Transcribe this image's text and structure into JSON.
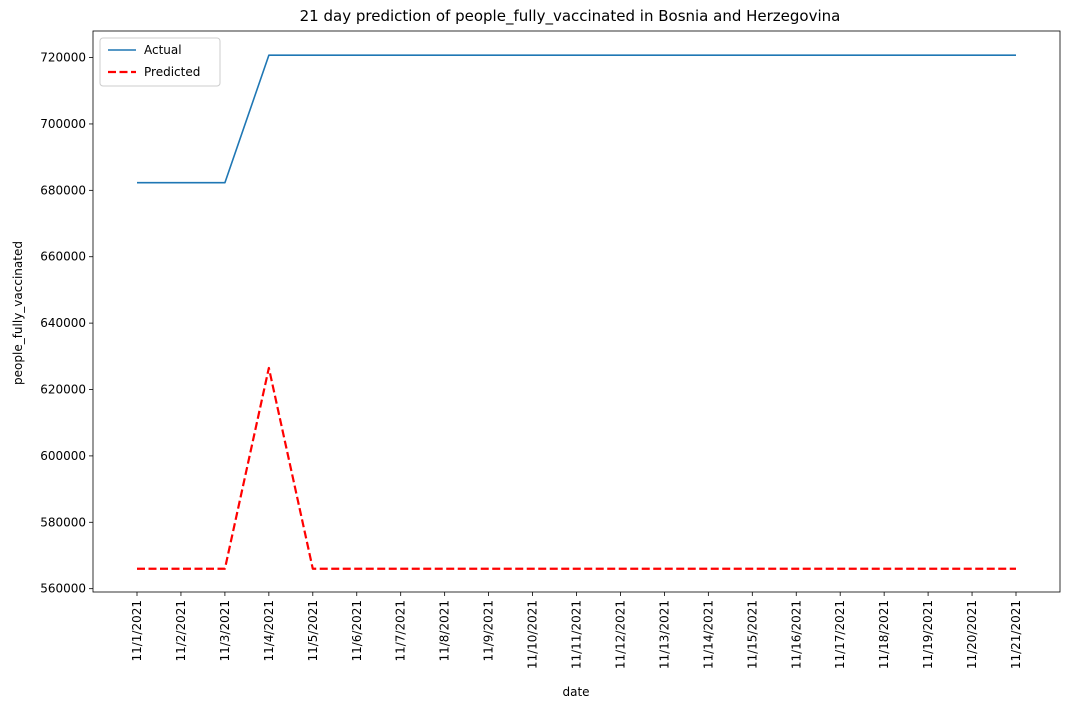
{
  "chart_data": {
    "type": "line",
    "title": "21 day prediction of people_fully_vaccinated in Bosnia and Herzegovina",
    "xlabel": "date",
    "ylabel": "people_fully_vaccinated",
    "categories": [
      "11/1/2021",
      "11/2/2021",
      "11/3/2021",
      "11/4/2021",
      "11/5/2021",
      "11/6/2021",
      "11/7/2021",
      "11/8/2021",
      "11/9/2021",
      "11/10/2021",
      "11/11/2021",
      "11/12/2021",
      "11/13/2021",
      "11/14/2021",
      "11/15/2021",
      "11/16/2021",
      "11/17/2021",
      "11/18/2021",
      "11/19/2021",
      "11/20/2021",
      "11/21/2021"
    ],
    "ylim": [
      559000,
      728000
    ],
    "yticks": [
      560000,
      580000,
      600000,
      620000,
      640000,
      660000,
      680000,
      700000,
      720000
    ],
    "grid": false,
    "legend_position": "top-left",
    "series": [
      {
        "name": "Actual",
        "color": "#1f77b4",
        "style": "solid",
        "values": [
          682300,
          682300,
          682300,
          720700,
          720700,
          720700,
          720700,
          720700,
          720700,
          720700,
          720700,
          720700,
          720700,
          720700,
          720700,
          720700,
          720700,
          720700,
          720700,
          720700,
          720700
        ]
      },
      {
        "name": "Predicted",
        "color": "#ff0000",
        "style": "dashed",
        "values": [
          566000,
          566000,
          566000,
          626500,
          566000,
          566000,
          566000,
          566000,
          566000,
          566000,
          566000,
          566000,
          566000,
          566000,
          566000,
          566000,
          566000,
          566000,
          566000,
          566000,
          566000
        ]
      }
    ]
  }
}
